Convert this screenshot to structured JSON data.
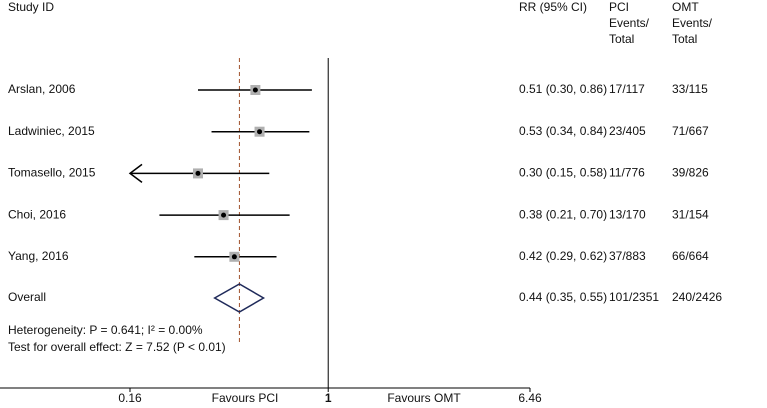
{
  "chart_data": {
    "type": "forest",
    "log_scale": true,
    "headers": {
      "study": "Study ID",
      "rr": "RR (95% CI)",
      "pci": [
        "PCI",
        "Events/",
        "Total"
      ],
      "omt": [
        "OMT",
        "Events/",
        "Total"
      ]
    },
    "studies": [
      {
        "name": "Arslan, 2006",
        "rr": 0.51,
        "ci_low": 0.3,
        "ci_high": 0.86,
        "rr_label": "0.51 (0.30, 0.86)",
        "pci": "17/117",
        "omt": "33/115"
      },
      {
        "name": "Ladwiniec, 2015",
        "rr": 0.53,
        "ci_low": 0.34,
        "ci_high": 0.84,
        "rr_label": "0.53 (0.34, 0.84)",
        "pci": "23/405",
        "omt": "71/667"
      },
      {
        "name": "Tomasello, 2015",
        "rr": 0.3,
        "ci_low": 0.15,
        "ci_high": 0.58,
        "rr_label": "0.30 (0.15, 0.58)",
        "pci": "11/776",
        "omt": "39/826"
      },
      {
        "name": "Choi, 2016",
        "rr": 0.38,
        "ci_low": 0.21,
        "ci_high": 0.7,
        "rr_label": "0.38 (0.21, 0.70)",
        "pci": "13/170",
        "omt": "31/154"
      },
      {
        "name": "Yang, 2016",
        "rr": 0.42,
        "ci_low": 0.29,
        "ci_high": 0.62,
        "rr_label": "0.42 (0.29, 0.62)",
        "pci": "37/883",
        "omt": "66/664"
      }
    ],
    "overall": {
      "name": "Overall",
      "rr": 0.44,
      "ci_low": 0.35,
      "ci_high": 0.55,
      "rr_label": "0.44 (0.35, 0.55)",
      "pci": "101/2351",
      "omt": "240/2426"
    },
    "annotations": [
      "Heterogeneity: P = 0.641;  I² = 0.00%",
      "Test for overall effect: Z = 7.52 (P < 0.01)"
    ],
    "reference_line": 1,
    "xlim": [
      0.16,
      6.46
    ],
    "xticks": [
      0.16,
      1,
      6.46
    ],
    "favours_left": "Favours PCI",
    "favours_right": "Favours OMT",
    "line_color": "#000000",
    "box_color": "#b0b0b0",
    "diamond_color": "#1f2a5a",
    "overall_line_color": "#a0522d"
  }
}
